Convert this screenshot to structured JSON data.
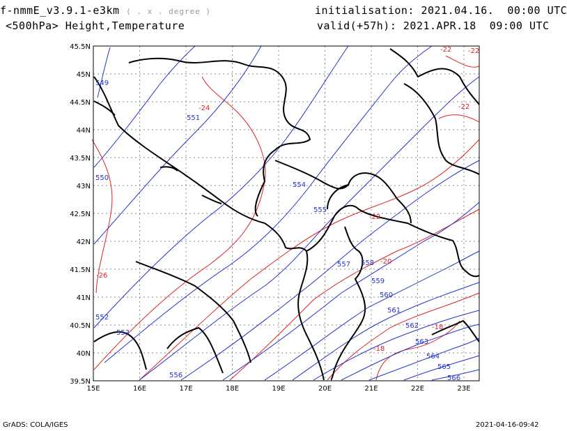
{
  "header": {
    "model": "f-nmmE_v3.9.1-e3km",
    "model_sub": "( . x . degree )",
    "level": "<500hPa> Height,Temperature",
    "init": "initialisation: 2021.04.16.  00:00 UTC",
    "valid": "valid(+57h): 2021.APR.18  09:00 UTC"
  },
  "footer": {
    "left": "GrADS: COLA/IGES",
    "right": "2021-04-16-09:42"
  },
  "colors": {
    "height": "#2233cc",
    "temperature": "#dd2222",
    "border": "#000000",
    "grid": "#888888"
  },
  "axes": {
    "lon": [
      "15E",
      "16E",
      "17E",
      "18E",
      "19E",
      "20E",
      "21E",
      "22E",
      "23E"
    ],
    "lat": [
      "39.5N",
      "40N",
      "40.5N",
      "41N",
      "41.5N",
      "42N",
      "42.5N",
      "43N",
      "43.5N",
      "44N",
      "44.5N",
      "45N",
      "45.5N"
    ]
  },
  "height_labels": [
    "549",
    "551",
    "550",
    "554",
    "555",
    "557",
    "558",
    "559",
    "560",
    "561",
    "562",
    "563",
    "564",
    "565",
    "566",
    "552",
    "553",
    "556"
  ],
  "temp_labels": [
    "-22",
    "-22",
    "-24",
    "-22",
    "-22",
    "-20",
    "-26",
    "-18",
    "-18"
  ]
}
